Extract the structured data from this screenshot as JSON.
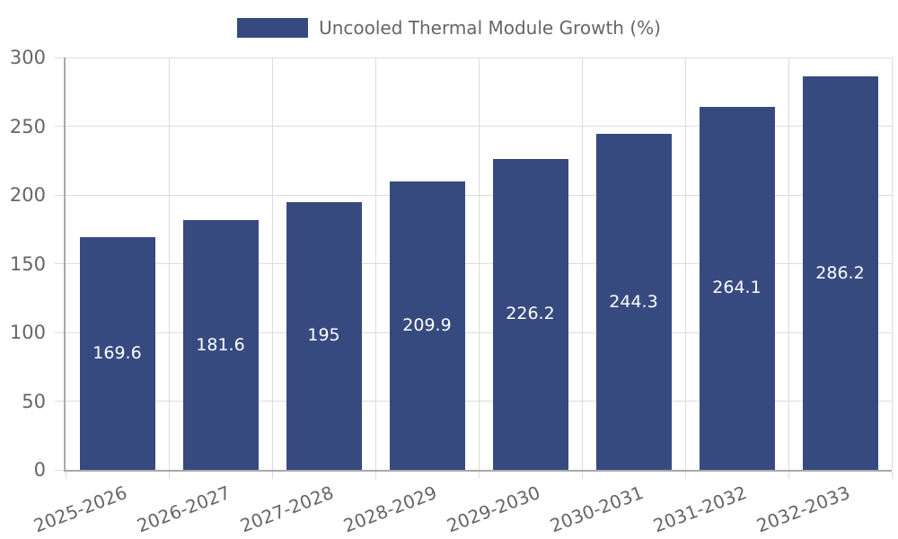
{
  "chart_data": {
    "type": "bar",
    "title": "",
    "legend_label": "Uncooled Thermal Module Growth (%)",
    "legend_position": "top",
    "categories": [
      "2025-2026",
      "2026-2027",
      "2027-2028",
      "2028-2029",
      "2029-2030",
      "2030-2031",
      "2031-2032",
      "2032-2033"
    ],
    "series": [
      {
        "name": "Uncooled Thermal Module Growth (%)",
        "values": [
          169.6,
          181.6,
          195,
          209.9,
          226.2,
          244.3,
          264.1,
          286.2
        ]
      }
    ],
    "value_labels": [
      "169.6",
      "181.6",
      "195",
      "209.9",
      "226.2",
      "244.3",
      "264.1",
      "286.2"
    ],
    "xlabel": "",
    "ylabel": "",
    "ylim": [
      0,
      300
    ],
    "yticks": [
      0,
      50,
      100,
      150,
      200,
      250,
      300
    ],
    "grid": true,
    "x_tick_rotation_deg": -21,
    "colors": {
      "bar": "#374a80",
      "value_label": "#ffffff",
      "grid_line": "#dcdcdc",
      "axis_line": "#a9a9a9",
      "tick_label": "#666666",
      "legend_text": "#666666",
      "background": "#ffffff"
    }
  }
}
